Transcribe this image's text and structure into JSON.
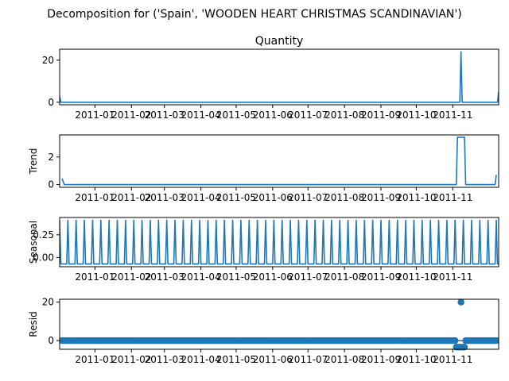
{
  "figure": {
    "suptitle": "Decomposition for ('Spain', 'WOODEN HEART CHRISTMAS SCANDINAVIAN')"
  },
  "chart_data": [
    {
      "type": "line",
      "title": "Quantity",
      "ylabel": "",
      "x_type": "date",
      "xlim": [
        "2010-12-01",
        "2011-12-09"
      ],
      "x_ticks": [
        "2011-01",
        "2011-02",
        "2011-03",
        "2011-04",
        "2011-05",
        "2011-06",
        "2011-07",
        "2011-08",
        "2011-09",
        "2011-10",
        "2011-11"
      ],
      "x_tick_positions": [
        "2010-12-31",
        "2011-01-31",
        "2011-02-28",
        "2011-03-31",
        "2011-04-30",
        "2011-05-31",
        "2011-06-30",
        "2011-07-31",
        "2011-08-31",
        "2011-09-30",
        "2011-10-31"
      ],
      "ylim": [
        -1.2,
        25.2
      ],
      "y_ticks": [
        0,
        20
      ],
      "series": [
        {
          "x": [
            "2010-12-01",
            "2010-12-02",
            "2011-11-06",
            "2011-11-07",
            "2011-11-08",
            "2011-12-08",
            "2011-12-09"
          ],
          "values": [
            3,
            0,
            0,
            24,
            0,
            0,
            5
          ]
        }
      ]
    },
    {
      "type": "line",
      "title": "",
      "ylabel": "Trend",
      "x_type": "date",
      "xlim": [
        "2010-12-01",
        "2011-12-09"
      ],
      "x_ticks": [
        "2011-01",
        "2011-02",
        "2011-03",
        "2011-04",
        "2011-05",
        "2011-06",
        "2011-07",
        "2011-08",
        "2011-09",
        "2011-10",
        "2011-11"
      ],
      "x_tick_positions": [
        "2010-12-31",
        "2011-01-31",
        "2011-02-28",
        "2011-03-31",
        "2011-04-30",
        "2011-05-31",
        "2011-06-30",
        "2011-07-31",
        "2011-08-31",
        "2011-09-30",
        "2011-10-31"
      ],
      "ylim": [
        -0.2,
        3.6
      ],
      "y_ticks": [
        0,
        2
      ],
      "series": [
        {
          "x": [
            "2010-12-03",
            "2010-12-05",
            "2011-11-03",
            "2011-11-04",
            "2011-11-10",
            "2011-11-11",
            "2011-12-06",
            "2011-12-07"
          ],
          "values": [
            0.43,
            0,
            0,
            3.43,
            3.43,
            0,
            0,
            0.71
          ]
        }
      ]
    },
    {
      "type": "line",
      "title": "",
      "ylabel": "Seasonal",
      "x_type": "date",
      "xlim": [
        "2010-12-01",
        "2011-12-09"
      ],
      "x_ticks": [
        "2011-01",
        "2011-02",
        "2011-03",
        "2011-04",
        "2011-05",
        "2011-06",
        "2011-07",
        "2011-08",
        "2011-09",
        "2011-10",
        "2011-11"
      ],
      "x_tick_positions": [
        "2010-12-31",
        "2011-01-31",
        "2011-02-28",
        "2011-03-31",
        "2011-04-30",
        "2011-05-31",
        "2011-06-30",
        "2011-07-31",
        "2011-08-31",
        "2011-09-30",
        "2011-10-31"
      ],
      "ylim": [
        -0.1,
        0.44
      ],
      "y_ticks": [
        0.0,
        0.25
      ],
      "y_tick_labels": [
        "0.00",
        "0.25"
      ],
      "series": [
        {
          "x_start": "2010-12-01",
          "x_end": "2011-12-09",
          "period_days": 7,
          "period_pattern": [
            0.41,
            -0.07,
            -0.07,
            -0.07,
            -0.07,
            -0.07,
            -0.07
          ]
        }
      ]
    },
    {
      "type": "scatter",
      "title": "",
      "ylabel": "Resid",
      "x_type": "date",
      "xlim": [
        "2010-12-01",
        "2011-12-09"
      ],
      "x_ticks": [
        "2011-01",
        "2011-02",
        "2011-03",
        "2011-04",
        "2011-05",
        "2011-06",
        "2011-07",
        "2011-08",
        "2011-09",
        "2011-10",
        "2011-11"
      ],
      "x_tick_positions": [
        "2010-12-31",
        "2011-01-31",
        "2011-02-28",
        "2011-03-31",
        "2011-04-30",
        "2011-05-31",
        "2011-06-30",
        "2011-07-31",
        "2011-08-31",
        "2011-09-30",
        "2011-10-31"
      ],
      "ylim": [
        -4.5,
        21.5
      ],
      "y_ticks": [
        0,
        20
      ],
      "baseline": 0,
      "series": [
        {
          "x_start": "2010-12-03",
          "x_end": "2011-12-07",
          "default_value": 0,
          "outliers": [
            {
              "x": "2011-11-03",
              "value": -3.4
            },
            {
              "x": "2011-11-04",
              "value": -3.4
            },
            {
              "x": "2011-11-05",
              "value": -3.4
            },
            {
              "x": "2011-11-06",
              "value": -3.4
            },
            {
              "x": "2011-11-07",
              "value": 20
            },
            {
              "x": "2011-11-08",
              "value": -3.4
            },
            {
              "x": "2011-11-09",
              "value": -3.4
            },
            {
              "x": "2011-11-10",
              "value": -3.4
            }
          ]
        }
      ]
    }
  ],
  "style": {
    "series_color": "#1f77b4",
    "axis_color": "#000000",
    "background": "#ffffff"
  }
}
